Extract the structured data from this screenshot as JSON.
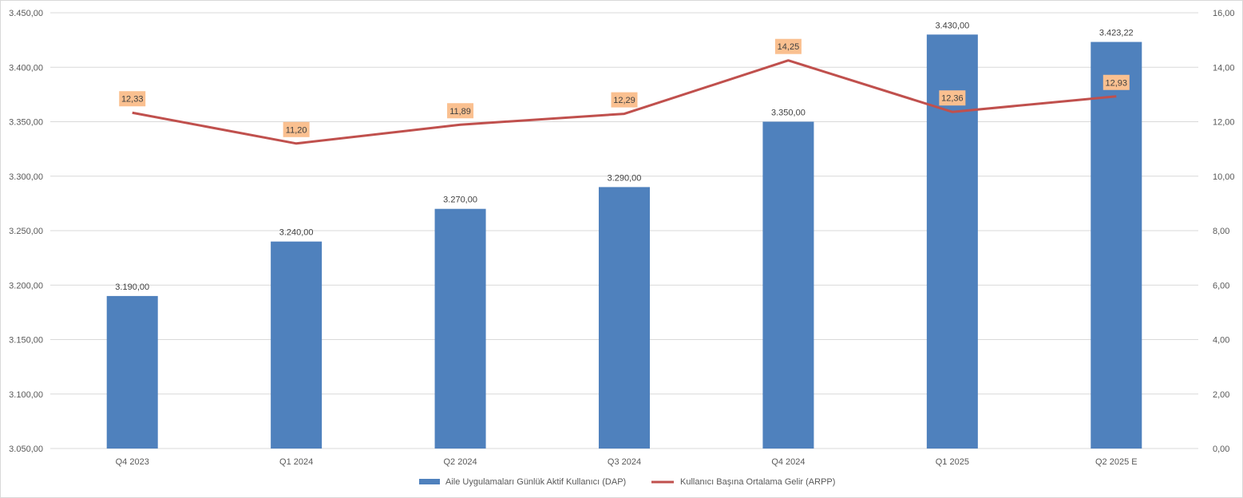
{
  "chart_data": {
    "type": "bar",
    "categories": [
      "Q4 2023",
      "Q1 2024",
      "Q2 2024",
      "Q3 2024",
      "Q4 2024",
      "Q1 2025",
      "Q2 2025 E"
    ],
    "series": [
      {
        "name": "Aile Uygulamaları Günlük Aktif Kullanıcı (DAP)",
        "type": "bar",
        "axis": "left",
        "color": "#4f81bd",
        "values": [
          3190,
          3240,
          3270,
          3290,
          3350,
          3430,
          3423.22
        ],
        "labels": [
          "3.190,00",
          "3.240,00",
          "3.270,00",
          "3.290,00",
          "3.350,00",
          "3.430,00",
          "3.423,22"
        ]
      },
      {
        "name": "Kullanıcı Başına Ortalama Gelir (ARPP)",
        "type": "line",
        "axis": "right",
        "color": "#c0504d",
        "label_bg": "#fac090",
        "values": [
          12.33,
          11.2,
          11.89,
          12.29,
          14.25,
          12.36,
          12.93
        ],
        "labels": [
          "12,33",
          "11,20",
          "11,89",
          "12,29",
          "14,25",
          "12,36",
          "12,93"
        ]
      }
    ],
    "y_left": {
      "min": 3050,
      "max": 3450,
      "step": 50,
      "tick_labels": [
        "3.050,00",
        "3.100,00",
        "3.150,00",
        "3.200,00",
        "3.250,00",
        "3.300,00",
        "3.350,00",
        "3.400,00",
        "3.450,00"
      ]
    },
    "y_right": {
      "min": 0,
      "max": 16,
      "step": 2,
      "tick_labels": [
        "0,00",
        "2,00",
        "4,00",
        "6,00",
        "8,00",
        "10,00",
        "12,00",
        "14,00",
        "16,00"
      ]
    },
    "grid": true,
    "legend_position": "bottom",
    "gridline_color": "#d9d9d9"
  }
}
